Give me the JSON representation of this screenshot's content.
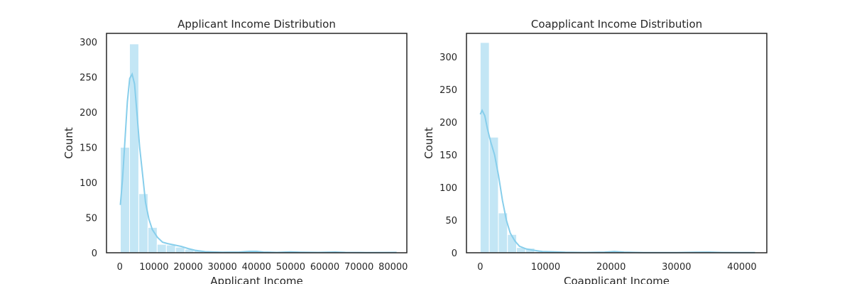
{
  "chart_data": [
    {
      "type": "histogram",
      "title": "Applicant Income Distribution",
      "xlabel": "Applicant Income",
      "ylabel": "Count",
      "xlim": [
        -3900,
        84000
      ],
      "ylim": [
        0,
        312
      ],
      "xticks": [
        0,
        10000,
        20000,
        30000,
        40000,
        50000,
        60000,
        70000,
        80000
      ],
      "yticks": [
        0,
        50,
        100,
        150,
        200,
        250,
        300
      ],
      "bin_start": 150,
      "bin_width": 2695,
      "counts": [
        150,
        297,
        84,
        36,
        12,
        11,
        8,
        5,
        3,
        1,
        1,
        0,
        0,
        1,
        3,
        1,
        0,
        0,
        0,
        1,
        0,
        0,
        0,
        1,
        0,
        0,
        0,
        0,
        0,
        1
      ],
      "kde": [
        [
          150,
          68
        ],
        [
          800,
          105
        ],
        [
          1500,
          160
        ],
        [
          2200,
          215
        ],
        [
          2900,
          248
        ],
        [
          3600,
          254
        ],
        [
          4300,
          240
        ],
        [
          5000,
          200
        ],
        [
          5800,
          150
        ],
        [
          6800,
          105
        ],
        [
          7500,
          72
        ],
        [
          8500,
          48
        ],
        [
          9500,
          33
        ],
        [
          11000,
          22
        ],
        [
          12500,
          15
        ],
        [
          14000,
          13
        ],
        [
          16000,
          11
        ],
        [
          18000,
          9
        ],
        [
          20000,
          6
        ],
        [
          22000,
          3.5
        ],
        [
          25000,
          1.5
        ],
        [
          30000,
          0.8
        ],
        [
          35000,
          1
        ],
        [
          38000,
          2
        ],
        [
          40000,
          2
        ],
        [
          42000,
          1
        ],
        [
          46000,
          0.5
        ],
        [
          50000,
          1.2
        ],
        [
          53000,
          0.8
        ],
        [
          58000,
          0.5
        ],
        [
          63000,
          1
        ],
        [
          66000,
          0.5
        ],
        [
          72000,
          0.3
        ],
        [
          78000,
          0.4
        ],
        [
          81000,
          0.5
        ]
      ],
      "color": "#87ceeb"
    },
    {
      "type": "histogram",
      "title": "Coapplicant Income Distribution",
      "xlabel": "Coapplicant Income",
      "ylabel": "Count",
      "xlim": [
        -2100,
        43800
      ],
      "ylim": [
        0,
        336
      ],
      "xticks": [
        0,
        10000,
        20000,
        30000,
        40000
      ],
      "yticks": [
        0,
        50,
        100,
        150,
        200,
        250,
        300
      ],
      "bin_start": 0,
      "bin_width": 1389,
      "counts": [
        322,
        177,
        61,
        28,
        8,
        7,
        2,
        1,
        1,
        0,
        0,
        0,
        0,
        0,
        1,
        1,
        0,
        0,
        0,
        0,
        0,
        0,
        0,
        0,
        1,
        0,
        0,
        0,
        0,
        1
      ],
      "kde": [
        [
          0,
          212
        ],
        [
          300,
          218
        ],
        [
          700,
          210
        ],
        [
          1100,
          190
        ],
        [
          1600,
          170
        ],
        [
          2200,
          150
        ],
        [
          2800,
          118
        ],
        [
          3400,
          80
        ],
        [
          4000,
          50
        ],
        [
          4600,
          30
        ],
        [
          5300,
          18
        ],
        [
          6000,
          10
        ],
        [
          7000,
          6
        ],
        [
          8000,
          4
        ],
        [
          9500,
          2
        ],
        [
          11000,
          1.5
        ],
        [
          13000,
          0.8
        ],
        [
          16000,
          0.4
        ],
        [
          19000,
          1
        ],
        [
          20500,
          2
        ],
        [
          22000,
          1
        ],
        [
          25000,
          0.3
        ],
        [
          30000,
          0.3
        ],
        [
          33000,
          0.8
        ],
        [
          35000,
          1
        ],
        [
          37000,
          0.4
        ],
        [
          40000,
          0.2
        ],
        [
          42000,
          0.2
        ]
      ],
      "color": "#87ceeb"
    }
  ]
}
